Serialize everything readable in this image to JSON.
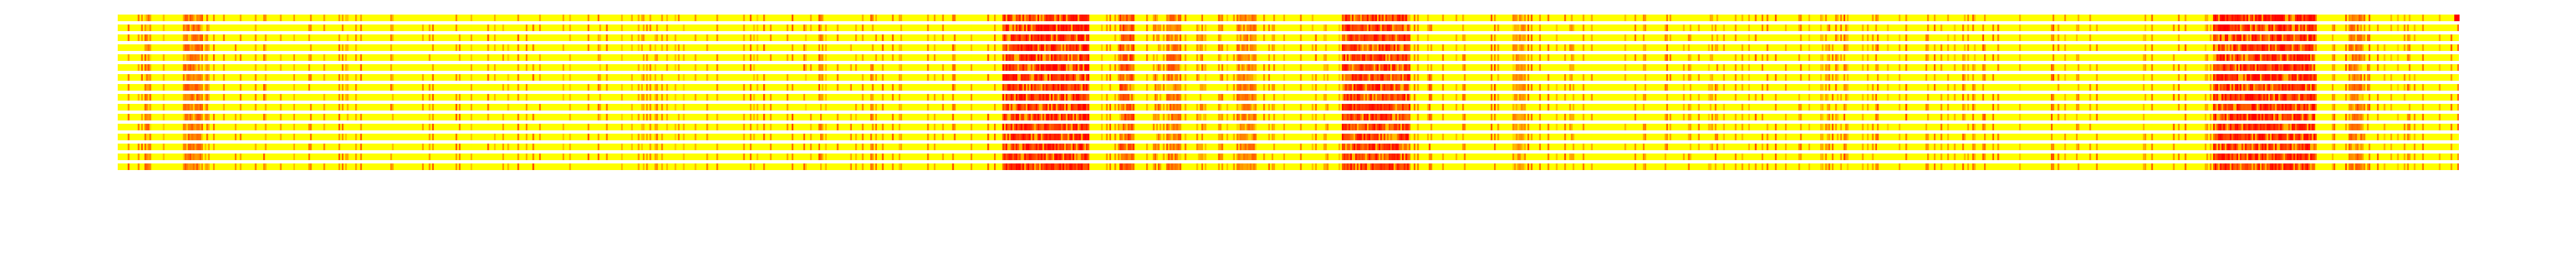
{
  "chart_data": {
    "type": "heatmap",
    "title": "",
    "xlabel": "",
    "ylabel": "",
    "n_rows": 16,
    "n_columns": 1400,
    "axes_visible": false,
    "grid": false,
    "legend": "none",
    "colormap": {
      "name": "autumn_r",
      "low_color": "#ffff00",
      "high_color": "#ff0000"
    },
    "value_range": [
      0,
      1
    ],
    "dominant_value": 0.0,
    "high_intensity_bands": [
      {
        "start_fraction": 0.012,
        "end_fraction": 0.014,
        "mean_value": 0.55
      },
      {
        "start_fraction": 0.028,
        "end_fraction": 0.036,
        "mean_value": 0.6
      },
      {
        "start_fraction": 0.378,
        "end_fraction": 0.415,
        "mean_value": 0.95
      },
      {
        "start_fraction": 0.428,
        "end_fraction": 0.434,
        "mean_value": 0.75
      },
      {
        "start_fraction": 0.448,
        "end_fraction": 0.454,
        "mean_value": 0.6
      },
      {
        "start_fraction": 0.478,
        "end_fraction": 0.486,
        "mean_value": 0.55
      },
      {
        "start_fraction": 0.523,
        "end_fraction": 0.552,
        "mean_value": 0.85
      },
      {
        "start_fraction": 0.596,
        "end_fraction": 0.601,
        "mean_value": 0.45
      },
      {
        "start_fraction": 0.895,
        "end_fraction": 0.938,
        "mean_value": 0.95
      },
      {
        "start_fraction": 0.953,
        "end_fraction": 0.958,
        "mean_value": 0.6
      }
    ],
    "highlighted_cells": [
      {
        "row": 0,
        "column_fraction": 0.998,
        "value": 1.0
      }
    ]
  }
}
